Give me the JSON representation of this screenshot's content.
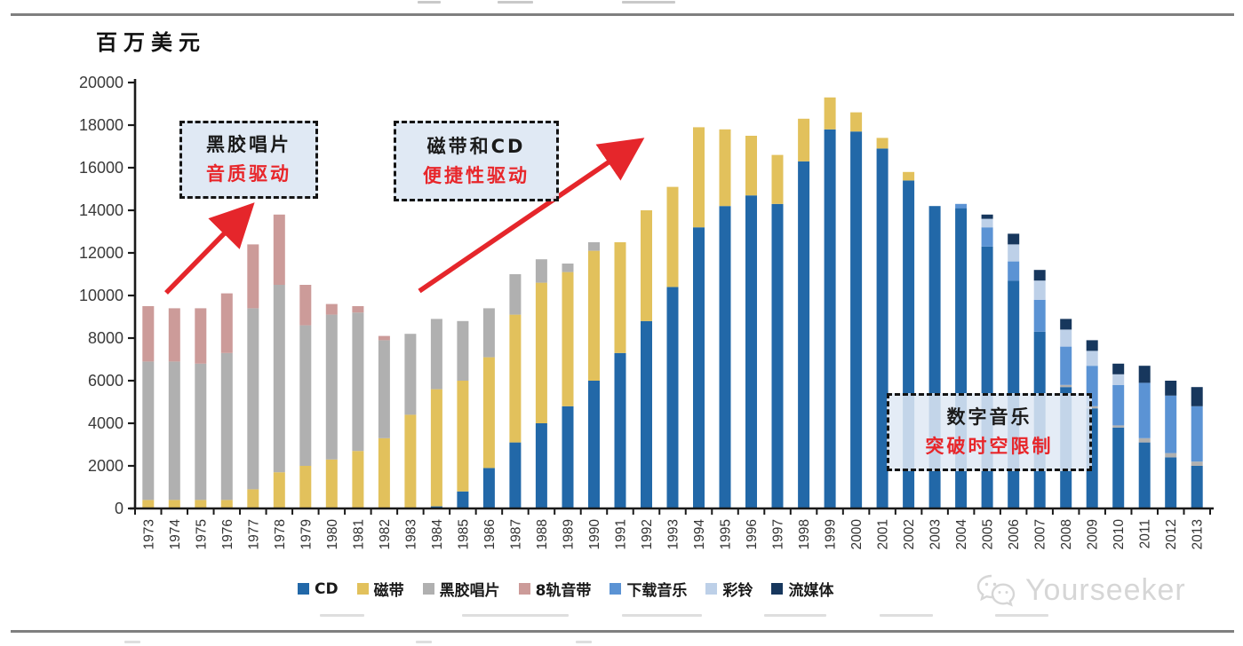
{
  "unit_label": "百万美元",
  "annotations": [
    {
      "line1": "黑胶唱片",
      "line2": "音质驱动"
    },
    {
      "line1": "磁带和CD",
      "line2": "便捷性驱动"
    },
    {
      "line1": "数字音乐",
      "line2": "突破时空限制"
    }
  ],
  "watermark": {
    "text": "Yourseeker",
    "icon": "wechat-icon"
  },
  "colors": {
    "cd": "#2268a8",
    "cassette": "#e2c15c",
    "vinyl": "#b0b0b0",
    "eight_track": "#cc9b99",
    "download": "#5b93d4",
    "ringtone": "#bdd0e8",
    "streaming": "#17375d",
    "arrow_red": "#e5262b",
    "annotation_red": "#e8262a",
    "axis": "#1a1a1a",
    "rule_gray": "#7f7f7f",
    "watermark_gray": "#d6d6d6"
  },
  "chart_data": {
    "type": "bar",
    "stacked": true,
    "title": "",
    "xlabel": "",
    "ylabel": "百万美元",
    "ylim": [
      0,
      20000
    ],
    "ytick_step": 2000,
    "grid": false,
    "legend_position": "bottom",
    "categories": [
      1973,
      1974,
      1975,
      1976,
      1977,
      1978,
      1979,
      1980,
      1981,
      1982,
      1983,
      1984,
      1985,
      1986,
      1987,
      1988,
      1989,
      1990,
      1991,
      1992,
      1993,
      1994,
      1995,
      1996,
      1997,
      1998,
      1999,
      2000,
      2001,
      2002,
      2003,
      2004,
      2005,
      2006,
      2007,
      2008,
      2009,
      2010,
      2011,
      2012,
      2013
    ],
    "series": [
      {
        "name": "CD",
        "color": "#2268a8",
        "values": [
          0,
          0,
          0,
          0,
          0,
          0,
          0,
          0,
          0,
          0,
          0,
          100,
          800,
          1900,
          3100,
          4000,
          4800,
          6000,
          7300,
          8800,
          10400,
          13200,
          14200,
          14700,
          14300,
          16300,
          17800,
          17700,
          16900,
          15400,
          14200,
          14100,
          12300,
          10700,
          8300,
          5700,
          4700,
          3800,
          3100,
          2400,
          2000
        ]
      },
      {
        "name": "磁带",
        "color": "#e2c15c",
        "values": [
          400,
          400,
          400,
          400,
          900,
          1700,
          2000,
          2300,
          2700,
          3300,
          4400,
          5500,
          5200,
          5200,
          6000,
          6600,
          6300,
          6100,
          5200,
          5200,
          4700,
          4700,
          3600,
          2800,
          2300,
          2000,
          1500,
          900,
          500,
          400,
          0,
          0,
          0,
          0,
          0,
          0,
          0,
          0,
          0,
          0,
          0
        ]
      },
      {
        "name": "黑胶唱片",
        "color": "#b0b0b0",
        "values": [
          6500,
          6500,
          6400,
          6900,
          8500,
          8800,
          6600,
          6800,
          6500,
          4600,
          3800,
          3300,
          2800,
          2300,
          1900,
          1100,
          400,
          400,
          0,
          0,
          0,
          0,
          0,
          0,
          0,
          0,
          0,
          0,
          0,
          0,
          0,
          0,
          0,
          0,
          0,
          100,
          100,
          100,
          200,
          200,
          200
        ]
      },
      {
        "name": "8轨音带",
        "color": "#cc9b99",
        "values": [
          2600,
          2500,
          2600,
          2800,
          3000,
          3300,
          1900,
          500,
          300,
          200,
          0,
          0,
          0,
          0,
          0,
          0,
          0,
          0,
          0,
          0,
          0,
          0,
          0,
          0,
          0,
          0,
          0,
          0,
          0,
          0,
          0,
          0,
          0,
          0,
          0,
          0,
          0,
          0,
          0,
          0,
          0
        ]
      },
      {
        "name": "下载音乐",
        "color": "#5b93d4",
        "values": [
          0,
          0,
          0,
          0,
          0,
          0,
          0,
          0,
          0,
          0,
          0,
          0,
          0,
          0,
          0,
          0,
          0,
          0,
          0,
          0,
          0,
          0,
          0,
          0,
          0,
          0,
          0,
          0,
          0,
          0,
          0,
          200,
          900,
          900,
          1500,
          1800,
          1900,
          1900,
          2600,
          2700,
          2600
        ]
      },
      {
        "name": "彩铃",
        "color": "#bdd0e8",
        "values": [
          0,
          0,
          0,
          0,
          0,
          0,
          0,
          0,
          0,
          0,
          0,
          0,
          0,
          0,
          0,
          0,
          0,
          0,
          0,
          0,
          0,
          0,
          0,
          0,
          0,
          0,
          0,
          0,
          0,
          0,
          0,
          0,
          400,
          800,
          900,
          800,
          700,
          500,
          0,
          0,
          0
        ]
      },
      {
        "name": "流媒体",
        "color": "#17375d",
        "values": [
          0,
          0,
          0,
          0,
          0,
          0,
          0,
          0,
          0,
          0,
          0,
          0,
          0,
          0,
          0,
          0,
          0,
          0,
          0,
          0,
          0,
          0,
          0,
          0,
          0,
          0,
          0,
          0,
          0,
          0,
          0,
          0,
          200,
          500,
          500,
          500,
          500,
          500,
          800,
          700,
          900
        ]
      }
    ],
    "totals_by_year": [
      9500,
      9400,
      9400,
      10100,
      12400,
      13800,
      10500,
      9600,
      9500,
      8100,
      8200,
      8900,
      8800,
      9400,
      11000,
      11700,
      11500,
      12500,
      12500,
      14000,
      15100,
      17900,
      17800,
      17500,
      16600,
      18300,
      19300,
      18600,
      17400,
      15800,
      14200,
      14300,
      13800,
      12900,
      11200,
      8900,
      7900,
      6800,
      6700,
      6000,
      5700
    ]
  }
}
